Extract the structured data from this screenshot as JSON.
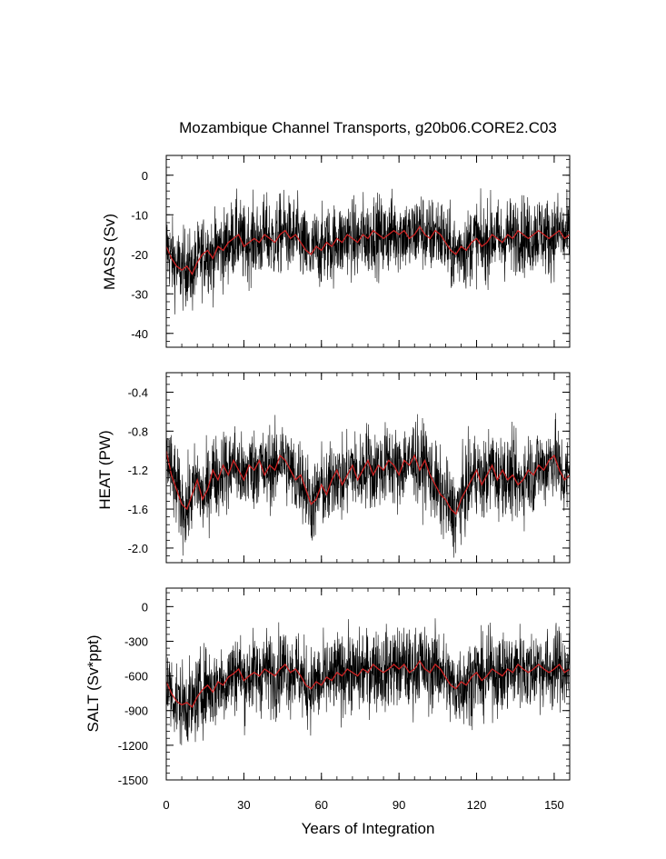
{
  "chart_data": {
    "type": "line",
    "title": "Mozambique Channel Transports, g20b06.CORE2.C03",
    "xlabel": "Years of Integration",
    "xlim": [
      0,
      156
    ],
    "xticks": [
      0,
      30,
      60,
      90,
      120,
      150
    ],
    "xtick_labels": [
      "0",
      "30",
      "60",
      "90",
      "120",
      "150"
    ],
    "series_colors": {
      "monthly": "#000000",
      "annual_mean": "#cc2222"
    },
    "panels": [
      {
        "key": "mass",
        "ylabel": "MASS (Sv)",
        "ylim": [
          -43.5,
          5
        ],
        "yticks": [
          0,
          -10,
          -20,
          -30,
          -40
        ],
        "ytick_labels": [
          "0",
          "-10",
          "-20",
          "-30",
          "-40"
        ],
        "annual_mean": {
          "x": [
            0,
            2,
            4,
            6,
            8,
            10,
            12,
            14,
            16,
            18,
            20,
            22,
            24,
            26,
            28,
            30,
            32,
            34,
            36,
            38,
            40,
            42,
            44,
            46,
            48,
            50,
            52,
            54,
            56,
            58,
            60,
            62,
            64,
            66,
            68,
            70,
            72,
            74,
            76,
            78,
            80,
            82,
            84,
            86,
            88,
            90,
            92,
            94,
            96,
            98,
            100,
            102,
            104,
            106,
            108,
            110,
            112,
            114,
            116,
            118,
            120,
            122,
            124,
            126,
            128,
            130,
            132,
            134,
            136,
            138,
            140,
            142,
            144,
            146,
            148,
            150,
            152,
            154,
            156
          ],
          "values": [
            -18,
            -21,
            -23,
            -24,
            -23,
            -25,
            -22,
            -20,
            -19,
            -21,
            -18,
            -19,
            -17,
            -16,
            -15,
            -18,
            -17,
            -16,
            -17,
            -15,
            -16,
            -17,
            -15,
            -14,
            -16,
            -15,
            -17,
            -19,
            -20,
            -18,
            -19,
            -17,
            -18,
            -16,
            -17,
            -15,
            -16,
            -17,
            -15,
            -16,
            -14,
            -15,
            -16,
            -15,
            -14,
            -15,
            -14,
            -16,
            -15,
            -13,
            -15,
            -16,
            -14,
            -15,
            -17,
            -19,
            -20,
            -18,
            -19,
            -17,
            -16,
            -18,
            -17,
            -15,
            -16,
            -17,
            -15,
            -16,
            -14,
            -15,
            -16,
            -15,
            -14,
            -15,
            -16,
            -15,
            -14,
            -16,
            -15
          ]
        },
        "monthly_spread": 9
      },
      {
        "key": "heat",
        "ylabel": "HEAT (PW)",
        "ylim": [
          -2.15,
          -0.2
        ],
        "yticks": [
          -0.4,
          -0.8,
          -1.2,
          -1.6,
          -2.0
        ],
        "ytick_labels": [
          "-0.4",
          "-0.8",
          "-1.2",
          "-1.6",
          "-2.0"
        ],
        "annual_mean": {
          "x": [
            0,
            2,
            4,
            6,
            8,
            10,
            12,
            14,
            16,
            18,
            20,
            22,
            24,
            26,
            28,
            30,
            32,
            34,
            36,
            38,
            40,
            42,
            44,
            46,
            48,
            50,
            52,
            54,
            56,
            58,
            60,
            62,
            64,
            66,
            68,
            70,
            72,
            74,
            76,
            78,
            80,
            82,
            84,
            86,
            88,
            90,
            92,
            94,
            96,
            98,
            100,
            102,
            104,
            106,
            108,
            110,
            112,
            114,
            116,
            118,
            120,
            122,
            124,
            126,
            128,
            130,
            132,
            134,
            136,
            138,
            140,
            142,
            144,
            146,
            148,
            150,
            152,
            154,
            156
          ],
          "values": [
            -1.0,
            -1.25,
            -1.4,
            -1.55,
            -1.6,
            -1.45,
            -1.3,
            -1.5,
            -1.4,
            -1.2,
            -1.3,
            -1.15,
            -1.25,
            -1.1,
            -1.2,
            -1.3,
            -1.15,
            -1.2,
            -1.1,
            -1.25,
            -1.15,
            -1.2,
            -1.05,
            -1.1,
            -1.2,
            -1.3,
            -1.25,
            -1.4,
            -1.55,
            -1.5,
            -1.35,
            -1.45,
            -1.3,
            -1.2,
            -1.35,
            -1.25,
            -1.15,
            -1.3,
            -1.2,
            -1.1,
            -1.25,
            -1.15,
            -1.2,
            -1.1,
            -1.15,
            -1.25,
            -1.1,
            -1.15,
            -1.05,
            -1.2,
            -1.1,
            -1.25,
            -1.35,
            -1.45,
            -1.5,
            -1.6,
            -1.65,
            -1.5,
            -1.4,
            -1.3,
            -1.2,
            -1.35,
            -1.25,
            -1.15,
            -1.3,
            -1.2,
            -1.3,
            -1.25,
            -1.35,
            -1.3,
            -1.2,
            -1.25,
            -1.15,
            -1.2,
            -1.1,
            -1.05,
            -1.2,
            -1.3,
            -1.25
          ]
        },
        "monthly_spread": 0.38
      },
      {
        "key": "salt",
        "ylabel": "SALT (Sv*ppt)",
        "ylim": [
          -1500,
          160
        ],
        "yticks": [
          0,
          -300,
          -600,
          -900,
          -1200,
          -1500
        ],
        "ytick_labels": [
          "0",
          "-300",
          "-600",
          "-900",
          "-1200",
          "-1500"
        ],
        "annual_mean": {
          "x": [
            0,
            2,
            4,
            6,
            8,
            10,
            12,
            14,
            16,
            18,
            20,
            22,
            24,
            26,
            28,
            30,
            32,
            34,
            36,
            38,
            40,
            42,
            44,
            46,
            48,
            50,
            52,
            54,
            56,
            58,
            60,
            62,
            64,
            66,
            68,
            70,
            72,
            74,
            76,
            78,
            80,
            82,
            84,
            86,
            88,
            90,
            92,
            94,
            96,
            98,
            100,
            102,
            104,
            106,
            108,
            110,
            112,
            114,
            116,
            118,
            120,
            122,
            124,
            126,
            128,
            130,
            132,
            134,
            136,
            138,
            140,
            142,
            144,
            146,
            148,
            150,
            152,
            154,
            156
          ],
          "values": [
            -650,
            -750,
            -820,
            -850,
            -830,
            -870,
            -780,
            -720,
            -680,
            -740,
            -650,
            -680,
            -610,
            -580,
            -540,
            -640,
            -600,
            -570,
            -600,
            -540,
            -570,
            -600,
            -540,
            -500,
            -570,
            -540,
            -600,
            -680,
            -710,
            -650,
            -680,
            -610,
            -640,
            -570,
            -600,
            -540,
            -570,
            -600,
            -540,
            -570,
            -500,
            -540,
            -570,
            -540,
            -500,
            -540,
            -500,
            -570,
            -540,
            -470,
            -540,
            -570,
            -500,
            -540,
            -610,
            -680,
            -710,
            -650,
            -680,
            -610,
            -570,
            -640,
            -600,
            -540,
            -570,
            -600,
            -540,
            -570,
            -500,
            -540,
            -570,
            -540,
            -500,
            -540,
            -570,
            -540,
            -500,
            -570,
            -540
          ]
        },
        "monthly_spread": 320
      }
    ]
  }
}
